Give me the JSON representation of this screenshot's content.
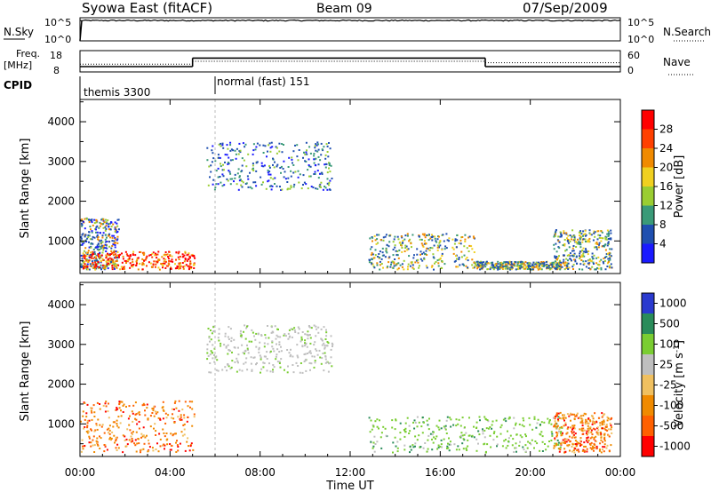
{
  "header": {
    "station": "Syowa East (fitACF)",
    "beam": "Beam 09",
    "date": "07/Sep/2009"
  },
  "nsky_panel": {
    "label": "N.Sky",
    "tick_top": "10^5",
    "tick_bottom": "10^0",
    "right_tick_top": "10^5",
    "right_tick_bottom": "10^0",
    "right_label": "N.Search",
    "value_log10": 4.4
  },
  "freq_panel": {
    "label_line1": "Freq.",
    "label_line2": "[MHz]",
    "tick_top": "18",
    "tick_bottom": "8",
    "right_tick_top": "60",
    "right_tick_bottom": "0",
    "right_label": "Nave",
    "freq_segments": [
      {
        "start_h": 0.0,
        "end_h": 5.0,
        "mhz": 10.5
      },
      {
        "start_h": 5.0,
        "end_h": 18.0,
        "mhz": 14.5
      },
      {
        "start_h": 18.0,
        "end_h": 24.0,
        "mhz": 10.5
      }
    ],
    "nave_segments": [
      {
        "start_h": 0.0,
        "end_h": 5.0,
        "val": 22
      },
      {
        "start_h": 5.0,
        "end_h": 18.0,
        "val": 30
      },
      {
        "start_h": 18.0,
        "end_h": 24.0,
        "val": 26
      }
    ]
  },
  "cpid": {
    "label": "CPID",
    "modes": [
      {
        "label": "themis 3300",
        "start_h": 0.0
      },
      {
        "label": "normal (fast) 151",
        "start_h": 6.0
      }
    ]
  },
  "time_axis": {
    "ticks": [
      "00:00",
      "04:00",
      "08:00",
      "12:00",
      "16:00",
      "20:00",
      "00:00"
    ],
    "title": "Time UT",
    "range_h": [
      0,
      24
    ]
  },
  "chart_data": [
    {
      "type": "heatmap",
      "name": "power",
      "ylabel": "Slant Range [km]",
      "yticks": [
        "1000",
        "2000",
        "3000",
        "4000"
      ],
      "ylim": [
        180,
        4560
      ],
      "xlim": [
        0,
        24
      ],
      "colorbar": {
        "label": "Power [dB]",
        "labels": [
          "4",
          "8",
          "12",
          "16",
          "20",
          "24",
          "28"
        ],
        "colors": [
          "#1a1aff",
          "#1f4fb0",
          "#3a9a78",
          "#9acd32",
          "#f0d020",
          "#f08a00",
          "#ff4000",
          "#ff0000"
        ]
      },
      "echo_regions": [
        {
          "t0": 0.0,
          "t1": 1.7,
          "r0": 300,
          "r1": 1600,
          "level": "mix_low"
        },
        {
          "t0": 0.1,
          "t1": 5.1,
          "r0": 300,
          "r1": 750,
          "level": "strong"
        },
        {
          "t0": 5.6,
          "t1": 11.2,
          "r0": 2300,
          "r1": 3500,
          "level": "weak"
        },
        {
          "t0": 12.8,
          "t1": 17.5,
          "r0": 300,
          "r1": 1200,
          "level": "mix_mid"
        },
        {
          "t0": 17.5,
          "t1": 21.4,
          "r0": 300,
          "r1": 500,
          "level": "mix_mid"
        },
        {
          "t0": 21.0,
          "t1": 23.6,
          "r0": 300,
          "r1": 1300,
          "level": "mix_mid"
        }
      ]
    },
    {
      "type": "heatmap",
      "name": "velocity",
      "ylabel": "Slant Range [km]",
      "yticks": [
        "1000",
        "2000",
        "3000",
        "4000"
      ],
      "ylim": [
        180,
        4560
      ],
      "xlim": [
        0,
        24
      ],
      "colorbar": {
        "label": "Velocity  [m s^-1]",
        "labels": [
          "1000",
          "500",
          "100",
          "25",
          "-25",
          "-100",
          "-500",
          "-1000"
        ],
        "colors": [
          "#2a3acf",
          "#2a8c5a",
          "#7acd32",
          "#bfbfbf",
          "#f0c060",
          "#f08a00",
          "#ff6000",
          "#ff0000"
        ]
      },
      "echo_regions": [
        {
          "t0": 0.0,
          "t1": 5.1,
          "r0": 300,
          "r1": 1600,
          "level": "negative"
        },
        {
          "t0": 5.6,
          "t1": 11.2,
          "r0": 2300,
          "r1": 3500,
          "level": "ground"
        },
        {
          "t0": 12.8,
          "t1": 21.4,
          "r0": 300,
          "r1": 1200,
          "level": "positive"
        },
        {
          "t0": 21.0,
          "t1": 23.6,
          "r0": 300,
          "r1": 1300,
          "level": "negative"
        }
      ]
    }
  ]
}
